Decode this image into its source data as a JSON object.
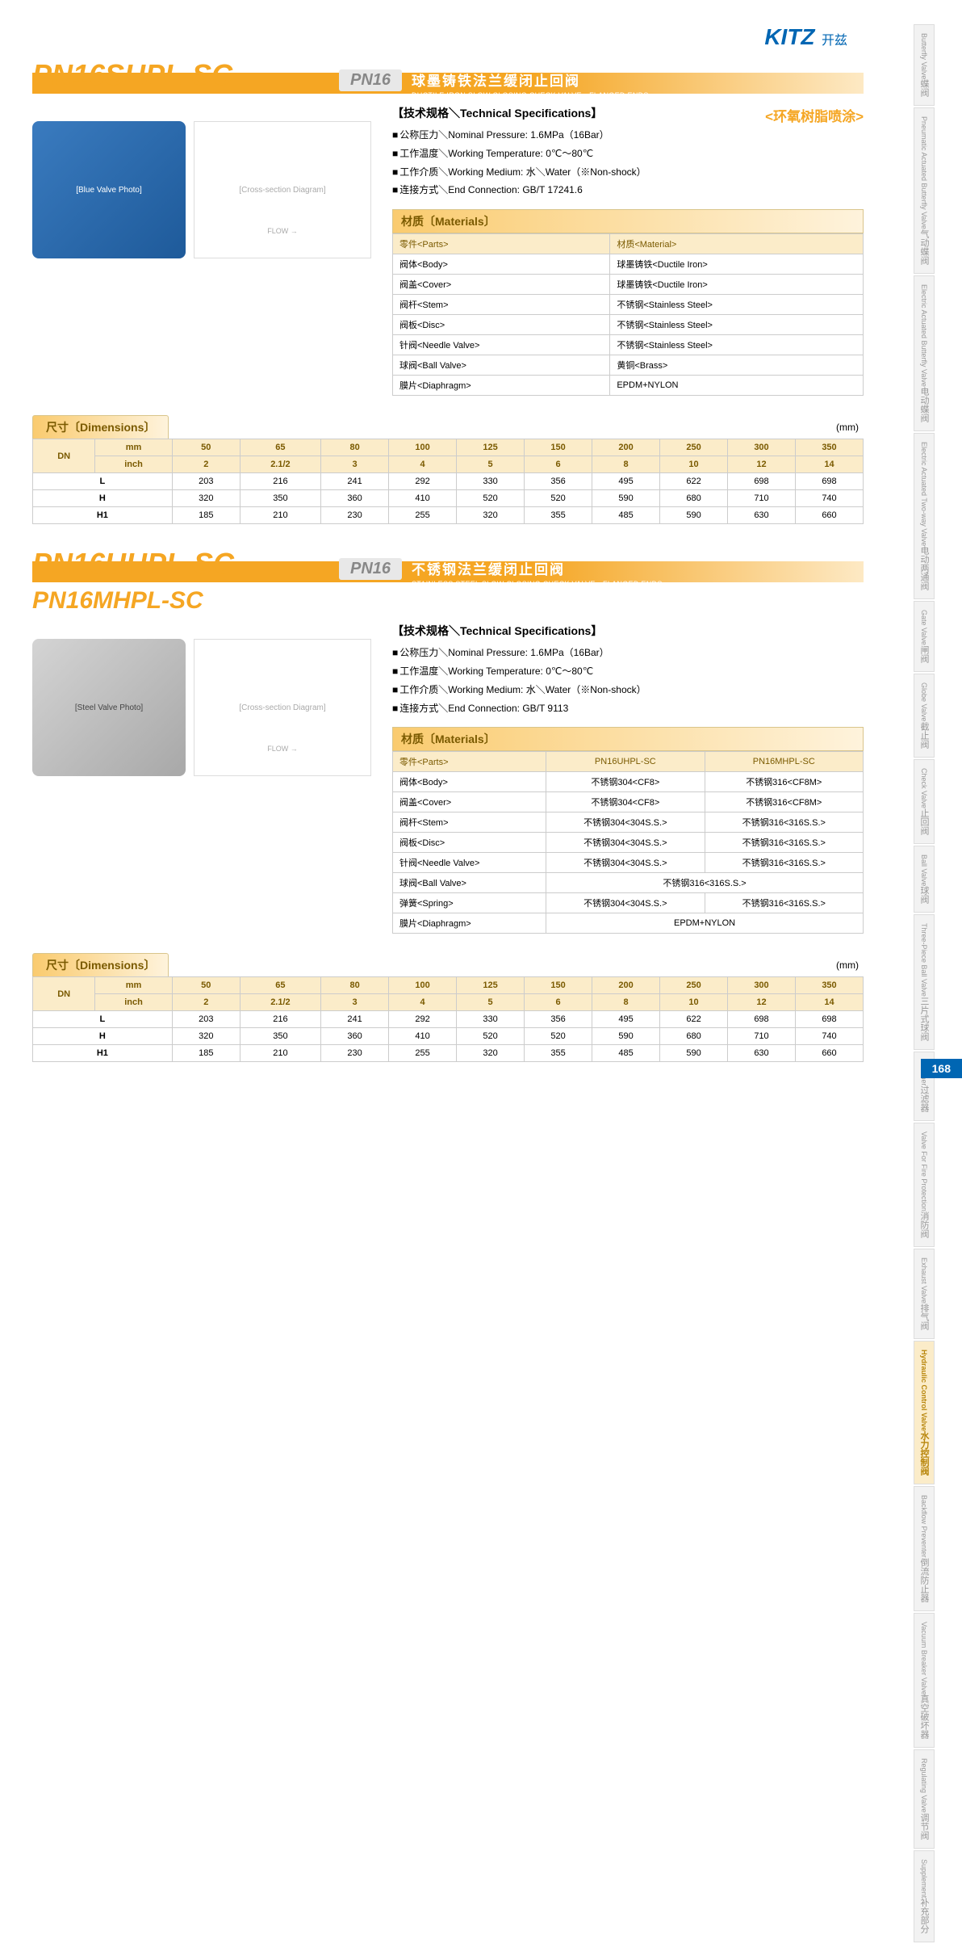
{
  "logo": {
    "brand": "KITZ",
    "cn": "开兹"
  },
  "page_number": "168",
  "product1": {
    "model": "PN16SHPL-SC",
    "pn": "PN16",
    "title_cn": "球墨铸铁法兰缓闭止回阀",
    "title_en": "DUCTILE IRON  SLOW CLOSING CHECK VALVE，FLANGED ENDS",
    "spec_header": "【技术规格＼Technical Specifications】",
    "coating": "<环氧树脂喷涂>",
    "specs": [
      "公称压力＼Nominal Pressure: 1.6MPa（16Bar）",
      "工作温度＼Working Temperature: 0℃～80℃",
      "工作介质＼Working Medium: 水＼Water（※Non-shock）",
      "连接方式＼End Connection: GB/T 17241.6"
    ],
    "materials_header": "材质〔Materials〕",
    "mat_cols": [
      "零件<Parts>",
      "材质<Material>"
    ],
    "mat_rows": [
      [
        "阀体<Body>",
        "球墨铸铁<Ductile Iron>"
      ],
      [
        "阀盖<Cover>",
        "球墨铸铁<Ductile Iron>"
      ],
      [
        "阀杆<Stem>",
        "不锈钢<Stainless Steel>"
      ],
      [
        "阀板<Disc>",
        "不锈钢<Stainless Steel>"
      ],
      [
        "针阀<Needle Valve>",
        "不锈钢<Stainless Steel>"
      ],
      [
        "球阀<Ball Valve>",
        "黄铜<Brass>"
      ],
      [
        "膜片<Diaphragm>",
        "EPDM+NYLON"
      ]
    ],
    "valve_placeholder": "[Blue Valve Photo]",
    "diagram_placeholder": "[Cross-section Diagram]"
  },
  "product2": {
    "model": "PN16UHPL-SC",
    "sub_model": "PN16MHPL-SC",
    "pn": "PN16",
    "title_cn": "不锈钢法兰缓闭止回阀",
    "title_en": "STAINLESS STEEL  SLOW CLOSING CHECK VALVE，FLANGED ENDS",
    "spec_header": "【技术规格＼Technical Specifications】",
    "specs": [
      "公称压力＼Nominal Pressure: 1.6MPa（16Bar）",
      "工作温度＼Working Temperature: 0℃～80℃",
      "工作介质＼Working Medium: 水＼Water（※Non-shock）",
      "连接方式＼End Connection: GB/T 9113"
    ],
    "materials_header": "材质〔Materials〕",
    "mat_cols": [
      "零件<Parts>",
      "PN16UHPL-SC",
      "PN16MHPL-SC"
    ],
    "mat_rows": [
      {
        "cells": [
          "阀体<Body>",
          "不锈钢304<CF8>",
          "不锈钢316<CF8M>"
        ]
      },
      {
        "cells": [
          "阀盖<Cover>",
          "不锈钢304<CF8>",
          "不锈钢316<CF8M>"
        ]
      },
      {
        "cells": [
          "阀杆<Stem>",
          "不锈钢304<304S.S.>",
          "不锈钢316<316S.S.>"
        ]
      },
      {
        "cells": [
          "阀板<Disc>",
          "不锈钢304<304S.S.>",
          "不锈钢316<316S.S.>"
        ]
      },
      {
        "cells": [
          "针阀<Needle Valve>",
          "不锈钢304<304S.S.>",
          "不锈钢316<316S.S.>"
        ]
      },
      {
        "cells": [
          "球阀<Ball Valve>"
        ],
        "merged": "不锈钢316<316S.S.>"
      },
      {
        "cells": [
          "弹簧<Spring>",
          "不锈钢304<304S.S.>",
          "不锈钢316<316S.S.>"
        ]
      },
      {
        "cells": [
          "膜片<Diaphragm>"
        ],
        "merged": "EPDM+NYLON"
      }
    ],
    "valve_placeholder": "[Steel Valve Photo]",
    "diagram_placeholder": "[Cross-section Diagram]"
  },
  "dimensions": {
    "header": "尺寸〔Dimensions〕",
    "unit": "(mm)",
    "dn_label": "DN",
    "unit_rows": [
      {
        "label": "mm",
        "vals": [
          "50",
          "65",
          "80",
          "100",
          "125",
          "150",
          "200",
          "250",
          "300",
          "350"
        ]
      },
      {
        "label": "inch",
        "vals": [
          "2",
          "2.1/2",
          "3",
          "4",
          "5",
          "6",
          "8",
          "10",
          "12",
          "14"
        ]
      }
    ],
    "data_rows": [
      {
        "label": "L",
        "vals": [
          "203",
          "216",
          "241",
          "292",
          "330",
          "356",
          "495",
          "622",
          "698",
          "698"
        ]
      },
      {
        "label": "H",
        "vals": [
          "320",
          "350",
          "360",
          "410",
          "520",
          "520",
          "590",
          "680",
          "710",
          "740"
        ]
      },
      {
        "label": "H1",
        "vals": [
          "185",
          "210",
          "230",
          "255",
          "320",
          "355",
          "485",
          "590",
          "630",
          "660"
        ]
      }
    ]
  },
  "side_tabs": [
    {
      "en": "Butterfly Valve",
      "cn": "蝶阀"
    },
    {
      "en": "Pneumatic Actuated Butterfly Valve",
      "cn": "气动蝶阀"
    },
    {
      "en": "Electric Actuated Butterfly Valve",
      "cn": "电动蝶阀"
    },
    {
      "en": "Electric Actuated Two-way Valve",
      "cn": "电动两通阀"
    },
    {
      "en": "Gate Valve",
      "cn": "闸阀"
    },
    {
      "en": "Globe Valve",
      "cn": "截止阀"
    },
    {
      "en": "Check Valve",
      "cn": "止回阀"
    },
    {
      "en": "Ball Valve",
      "cn": "球阀"
    },
    {
      "en": "Three-Piece Ball Valve",
      "cn": "三片式球阀"
    },
    {
      "en": "Strainer",
      "cn": "过滤器"
    },
    {
      "en": "Valve For Fire Protection",
      "cn": "消防阀"
    },
    {
      "en": "Exhaust Valve",
      "cn": "排气阀"
    },
    {
      "en": "Hydraulic Control Valve",
      "cn": "水力控制阀",
      "active": true
    },
    {
      "en": "Backflow Preventer",
      "cn": "倒流防止器"
    },
    {
      "en": "Vacuum Breaker Valve",
      "cn": "真空破坏器"
    },
    {
      "en": "Regulating Valve",
      "cn": "调节阀"
    },
    {
      "en": "Supplement",
      "cn": "补充部分"
    }
  ]
}
